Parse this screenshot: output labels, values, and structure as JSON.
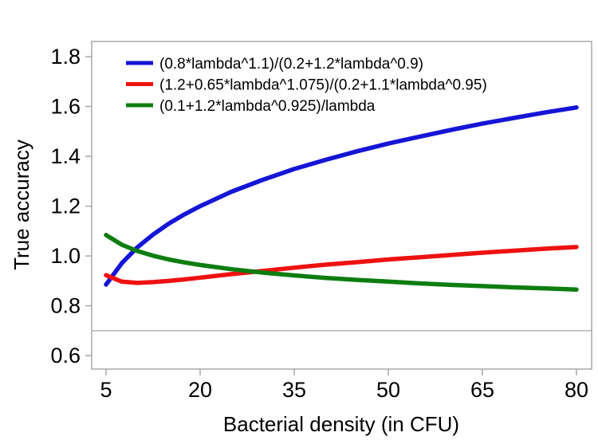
{
  "figure": {
    "title": "",
    "background": "#ffffff",
    "frame_color": "#a8a8a8",
    "text_color": "#000000"
  },
  "chart_data": {
    "type": "line",
    "title": "",
    "xlabel": "Bacterial density (in CFU)",
    "ylabel": "True accuracy",
    "xlim": [
      2.71,
      82.42
    ],
    "ylim": [
      0.546,
      1.861
    ],
    "x_ticks": [
      5,
      20,
      35,
      50,
      65,
      80
    ],
    "y_ticks": [
      0.6,
      0.8,
      1.0,
      1.2,
      1.4,
      1.6,
      1.8
    ],
    "grid": false,
    "reference_line_y": 0.7,
    "legend_position": "top-left-inside",
    "x": [
      5,
      7.5,
      10,
      12.5,
      15,
      17.5,
      20,
      25,
      30,
      35,
      40,
      45,
      50,
      55,
      60,
      65,
      70,
      75,
      80
    ],
    "series": [
      {
        "name": "(0.8*lambda^1.1)/(0.2+1.2*lambda^0.9)",
        "color": "#1515d6",
        "values": [
          0.885,
          0.971,
          1.035,
          1.086,
          1.13,
          1.167,
          1.2,
          1.258,
          1.306,
          1.349,
          1.386,
          1.42,
          1.451,
          1.479,
          1.506,
          1.531,
          1.554,
          1.576,
          1.596
        ]
      },
      {
        "name": "(1.2+0.65*lambda^1.075)/(0.2+1.1*lambda^0.95)",
        "color": "#ee1111",
        "values": [
          0.923,
          0.897,
          0.892,
          0.895,
          0.9,
          0.906,
          0.913,
          0.927,
          0.94,
          0.953,
          0.965,
          0.975,
          0.986,
          0.995,
          1.004,
          1.013,
          1.021,
          1.029,
          1.036
        ]
      },
      {
        "name": "(0.1+1.2*lambda^0.925)/lambda",
        "color": "#0e7d10",
        "values": [
          1.084,
          1.045,
          1.02,
          1.001,
          0.986,
          0.974,
          0.964,
          0.947,
          0.933,
          0.922,
          0.912,
          0.904,
          0.897,
          0.89,
          0.884,
          0.879,
          0.874,
          0.87,
          0.865
        ]
      }
    ]
  }
}
